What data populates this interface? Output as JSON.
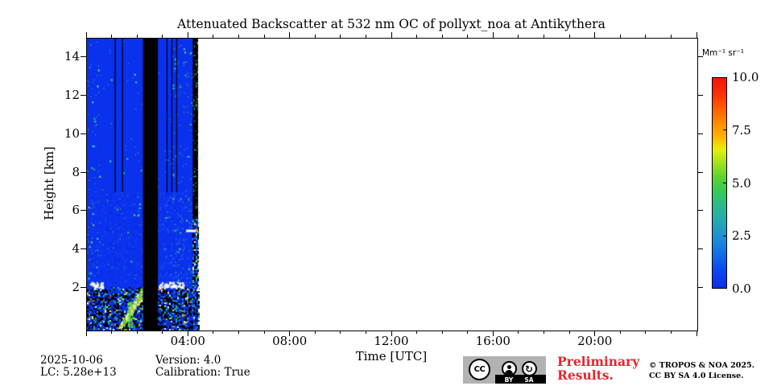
{
  "title": "Attenuated Backscatter at 532 nm OC of pollyxt_noa at Antikythera",
  "axes": {
    "xlabel": "Time [UTC]",
    "ylabel": "Height [km]",
    "x_tick_hours": [
      4,
      8,
      12,
      16,
      20
    ],
    "x_tick_labels": [
      "04:00",
      "08:00",
      "12:00",
      "16:00",
      "20:00"
    ],
    "x_minor_tick_every_hours": 1,
    "x_range_hours": [
      0,
      24
    ],
    "y_tick_km": [
      2,
      4,
      6,
      8,
      10,
      12,
      14
    ],
    "y_tick_labels": [
      "2",
      "4",
      "6",
      "8",
      "10",
      "12",
      "14"
    ],
    "y_range_km": [
      0,
      15
    ]
  },
  "colorbar": {
    "unit_label": "Mm⁻¹ sr⁻¹",
    "tick_values": [
      10.0,
      7.5,
      5.0,
      2.5,
      0.0
    ],
    "tick_labels": [
      "10.0",
      "7.5",
      "5.0",
      "2.5",
      "0.0"
    ],
    "min": 0.0,
    "max": 10.0,
    "gradient_stops": [
      [
        "#0a2ee8",
        0
      ],
      [
        "#0c49f0",
        9
      ],
      [
        "#1173e8",
        17
      ],
      [
        "#1e93d0",
        25
      ],
      [
        "#23adad",
        33
      ],
      [
        "#2abd85",
        40
      ],
      [
        "#3bcb50",
        47
      ],
      [
        "#5fd42e",
        53
      ],
      [
        "#a8e41c",
        60
      ],
      [
        "#e8f004",
        66
      ],
      [
        "#ffb300",
        72
      ],
      [
        "#ff9000",
        78
      ],
      [
        "#ff5a00",
        86
      ],
      [
        "#fb2b06",
        93
      ],
      [
        "#f41505",
        100
      ]
    ]
  },
  "footer": {
    "date": "2025-10-06",
    "lc": "LC: 5.28e+13",
    "version": "Version: 4.0",
    "calibration": "Calibration: True",
    "preliminary_line1": "Preliminary",
    "preliminary_line2": "Results.",
    "preliminary_color": "#e8252b",
    "copyright_line1": "© TROPOS & NOA 2025.",
    "copyright_line2": "CC BY SA 4.0 License.",
    "badge": {
      "cc": "CC",
      "by": "BY",
      "sa": "SA",
      "sa_glyph": "↻"
    }
  },
  "chart_data": {
    "type": "heatmap",
    "title": "Attenuated Backscatter at 532 nm OC of pollyxt_noa at Antikythera",
    "xlabel": "Time [UTC]",
    "ylabel": "Height [km]",
    "x_range_hours": [
      0,
      24
    ],
    "y_range_km": [
      -0.2,
      15.0
    ],
    "value_unit": "Mm⁻¹ sr⁻¹",
    "value_range": [
      0.0,
      10.0
    ],
    "colormap": "jet-like (blue→cyan→green→yellow→orange→red)",
    "legend_position": "right colorbar",
    "coverage_hours": [
      0.0,
      4.37
    ],
    "background": "clear air, backscatter ≈ 0 (blue) above boundary layer",
    "base_color": "#0a31ee",
    "noise_dot_colors": [
      "#2bd8c8",
      "#2ed04e",
      "#8ae03a",
      "#49e0a0"
    ],
    "features": {
      "seed": 11,
      "calibration_gap_hours": [
        2.205,
        2.79
      ],
      "profile_dropout_lines": {
        "hours": [
          1.09,
          1.38,
          3.13,
          3.32,
          3.51
        ],
        "from_km": 7.0,
        "to_km": 15.0
      },
      "right_dark_column_hours": [
        4.16,
        4.37
      ],
      "right_dark_column_bottom_km": 5.6,
      "boundary_layer_top_km": 1.95,
      "cloud_streak_km": 2.2,
      "cloud_segments_hours": [
        [
          0.12,
          0.62
        ],
        [
          2.82,
          3.8
        ]
      ],
      "plume_hours": [
        1.3,
        2.15
      ],
      "plume_top_km": 2.0,
      "white_streak": {
        "hours": [
          3.9,
          4.37
        ],
        "km": 5.05
      }
    }
  }
}
